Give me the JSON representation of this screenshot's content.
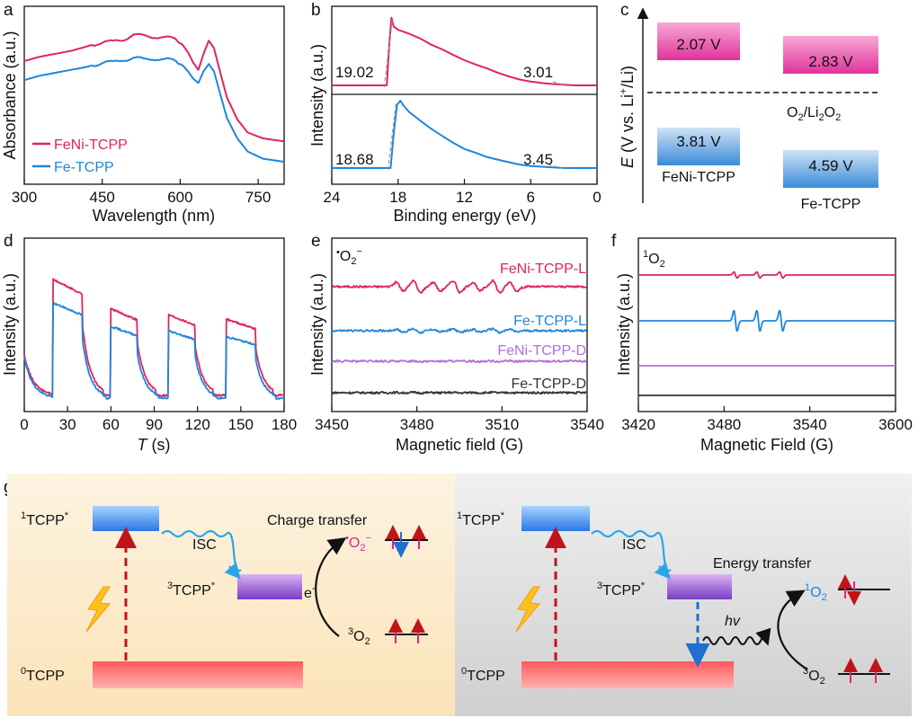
{
  "colors": {
    "red": "#e0245e",
    "blue": "#1f86d9",
    "purple": "#b36fd6",
    "black": "#333333",
    "magenta": "#e0247f"
  },
  "chart_data": [
    {
      "panel": "a",
      "type": "line",
      "xlabel": "Wavelength (nm)",
      "ylabel": "Absorbance (a.u.)",
      "xlim": [
        300,
        800
      ],
      "xticks": [
        "300",
        "450",
        "600",
        "750"
      ],
      "series": [
        {
          "name": "FeNi-TCPP",
          "color": "#e0245e",
          "x": [
            300,
            330,
            360,
            390,
            420,
            450,
            470,
            490,
            510,
            530,
            550,
            570,
            590,
            605,
            615,
            625,
            635,
            645,
            655,
            665,
            675,
            690,
            710,
            730,
            760,
            800
          ],
          "y": [
            0.77,
            0.8,
            0.82,
            0.84,
            0.87,
            0.9,
            0.9,
            0.92,
            0.95,
            0.94,
            0.94,
            0.93,
            0.92,
            0.88,
            0.83,
            0.76,
            0.71,
            0.82,
            0.91,
            0.86,
            0.72,
            0.52,
            0.37,
            0.28,
            0.24,
            0.22
          ]
        },
        {
          "name": "Fe-TCPP",
          "color": "#1f86d9",
          "x": [
            300,
            330,
            360,
            390,
            420,
            450,
            470,
            490,
            510,
            530,
            550,
            570,
            590,
            605,
            615,
            625,
            635,
            645,
            655,
            665,
            675,
            690,
            710,
            730,
            760,
            800
          ],
          "y": [
            0.64,
            0.67,
            0.69,
            0.71,
            0.73,
            0.76,
            0.76,
            0.78,
            0.79,
            0.78,
            0.79,
            0.78,
            0.77,
            0.74,
            0.7,
            0.65,
            0.62,
            0.7,
            0.75,
            0.7,
            0.57,
            0.38,
            0.24,
            0.15,
            0.1,
            0.08
          ]
        }
      ]
    },
    {
      "panel": "b",
      "type": "line",
      "xlabel": "Binding energy (eV)",
      "ylabel": "Intensity (a.u.)",
      "xlim": [
        24,
        0
      ],
      "xticks": [
        "24",
        "18",
        "12",
        "6",
        "0"
      ],
      "series": [
        {
          "name": "FeNi-TCPP",
          "color": "#e0245e",
          "cutoff_label": "19.02",
          "edge_label": "3.01",
          "x": [
            24,
            20,
            19.02,
            18.8,
            18.6,
            18.4,
            18,
            17,
            16,
            15,
            14,
            13,
            12,
            11,
            10,
            9,
            8,
            7,
            6,
            5,
            4,
            3,
            2,
            1,
            0
          ],
          "y": [
            0.0,
            0.0,
            0.0,
            0.6,
            1.0,
            0.88,
            0.83,
            0.76,
            0.69,
            0.61,
            0.53,
            0.45,
            0.38,
            0.31,
            0.25,
            0.19,
            0.14,
            0.09,
            0.05,
            0.03,
            0.02,
            0.01,
            0.0,
            0.0,
            0.0
          ]
        },
        {
          "name": "Fe-TCPP",
          "color": "#1f86d9",
          "cutoff_label": "18.68",
          "edge_label": "3.45",
          "x": [
            24,
            20,
            18.68,
            18.4,
            18.1,
            17.8,
            17.5,
            17,
            16,
            15,
            14,
            13,
            12,
            11,
            10,
            9,
            8,
            7,
            6,
            5,
            4,
            3,
            2,
            1,
            0
          ],
          "y": [
            0.0,
            0.0,
            0.0,
            0.5,
            0.93,
            1.0,
            0.92,
            0.84,
            0.7,
            0.58,
            0.47,
            0.37,
            0.29,
            0.22,
            0.16,
            0.12,
            0.08,
            0.05,
            0.03,
            0.02,
            0.01,
            0.0,
            0.0,
            0.0,
            0.0
          ]
        }
      ]
    },
    {
      "panel": "c",
      "type": "energy-level diagram",
      "ylabel_pre": "E",
      "ylabel_post": " (V vs. Li",
      "ylabel_sup": "+",
      "ylabel_end": "/Li)",
      "ref_label": "O2/Li2O2",
      "items": [
        {
          "name": "FeNi-TCPP",
          "cb": "2.07 V",
          "vb": "3.81 V"
        },
        {
          "name": "Fe-TCPP",
          "cb": "2.83 V",
          "vb": "4.59 V"
        }
      ]
    },
    {
      "panel": "d",
      "type": "line",
      "xlabel": "T",
      "xlabel_unit": " (s)",
      "ylabel": "Intensity (a.u.)",
      "xlim": [
        0,
        180
      ],
      "xticks": [
        "0",
        "30",
        "60",
        "90",
        "120",
        "150",
        "180"
      ],
      "on_intervals": [
        [
          20,
          40
        ],
        [
          60,
          78
        ],
        [
          100,
          118
        ],
        [
          140,
          160
        ]
      ],
      "series": [
        {
          "name": "FeNi-TCPP",
          "color": "#e0245e",
          "on_levels": [
            0.82,
            0.62,
            0.58,
            0.55
          ],
          "dark_level": 0.05
        },
        {
          "name": "Fe-TCPP",
          "color": "#1f86d9",
          "on_levels": [
            0.68,
            0.52,
            0.49,
            0.45
          ],
          "dark_level": 0.03
        }
      ]
    },
    {
      "panel": "e",
      "type": "line",
      "xlabel": "Magnetic field (G)",
      "ylabel": "Intensity (a.u.)",
      "species": "O2-",
      "xlim": [
        3450,
        3540
      ],
      "xticks": [
        "3450",
        "3480",
        "3510",
        "3540"
      ],
      "signal_center": 3494,
      "hyperfine_G": [
        -20,
        -14,
        -7,
        0,
        7,
        14,
        20
      ],
      "series": [
        {
          "name": "FeNi-TCPP-L",
          "color": "#e0245e",
          "amplitude": 1.0
        },
        {
          "name": "Fe-TCPP-L",
          "color": "#1f86d9",
          "amplitude": 0.3
        },
        {
          "name": "FeNi-TCPP-D",
          "color": "#b36fd6",
          "amplitude": 0.04
        },
        {
          "name": "Fe-TCPP-D",
          "color": "#333333",
          "amplitude": 0.04
        }
      ]
    },
    {
      "panel": "f",
      "type": "line",
      "xlabel": "Magnetic Field (G)",
      "ylabel": "Intensity (a.u.)",
      "species": "1O2",
      "xlim": [
        3420,
        3600
      ],
      "xticks": [
        "3420",
        "3480",
        "3540",
        "3600"
      ],
      "triplet_G": [
        3488,
        3504,
        3520
      ],
      "series": [
        {
          "name": "FeNi-TCPP-L",
          "color": "#e0245e",
          "amplitude": 0.3
        },
        {
          "name": "Fe-TCPP-L",
          "color": "#1f86d9",
          "amplitude": 1.0
        },
        {
          "name": "FeNi-TCPP-D",
          "color": "#b36fd6",
          "amplitude": 0.0
        },
        {
          "name": "Fe-TCPP-D",
          "color": "#333333",
          "amplitude": 0.0
        }
      ]
    }
  ],
  "labels": {
    "a": "a",
    "b": "b",
    "c": "c",
    "d": "d",
    "e": "e",
    "f": "f",
    "g": "g"
  },
  "scheme": {
    "left_title": "Charge transfer",
    "right_title": "Energy transfer",
    "isc": "ISC",
    "s1_sup": "1",
    "t1_sup": "3",
    "s0_sup": "0",
    "tcpp": "TCPP",
    "star": "*",
    "electron": "e",
    "minus": "-",
    "o2_sup": "3",
    "o2": "O",
    "singlet_sup": "1",
    "hv": "hv"
  }
}
